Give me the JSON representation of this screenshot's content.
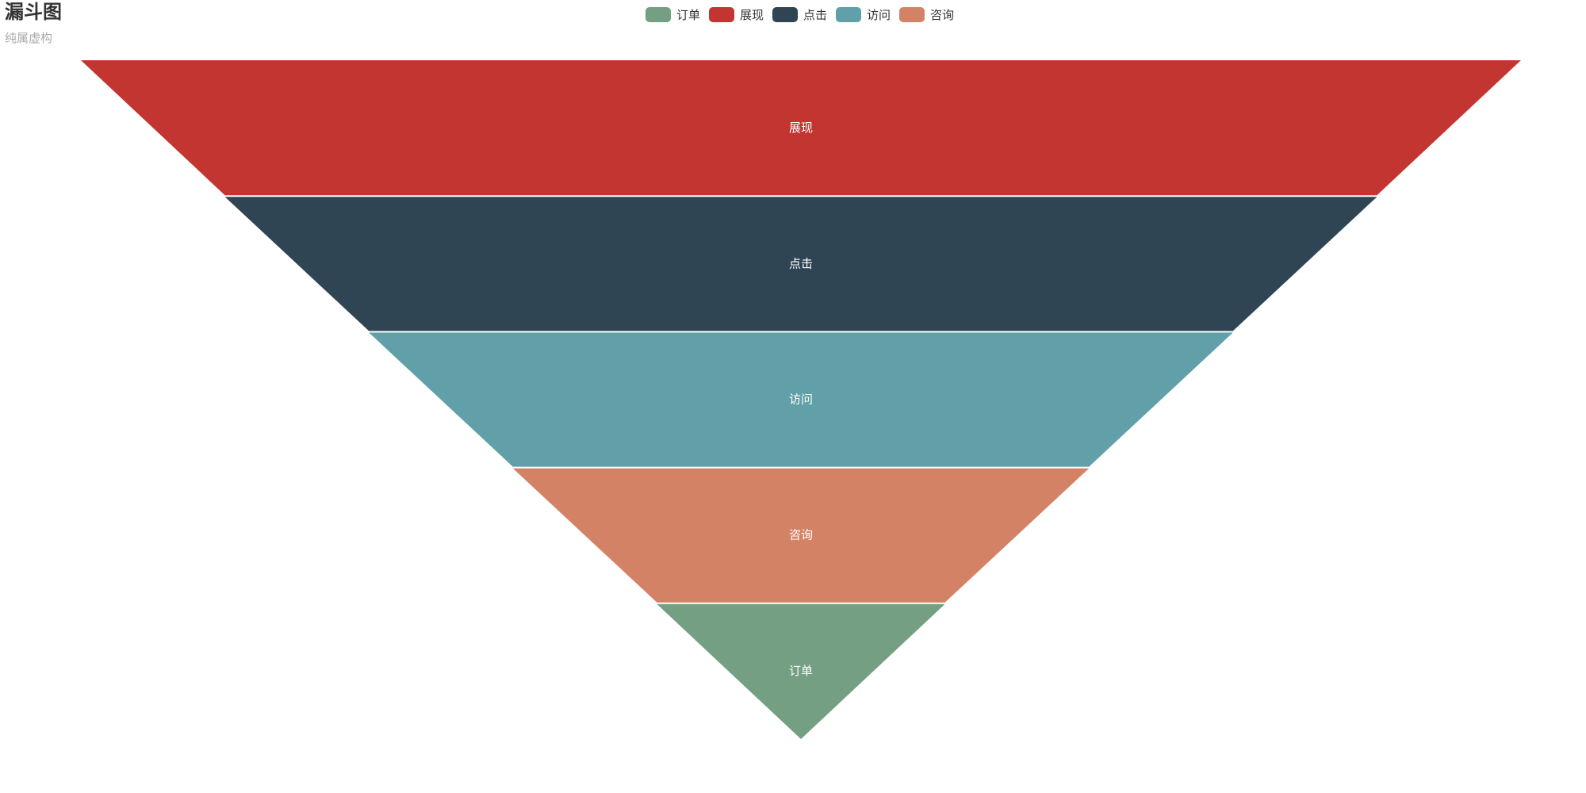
{
  "title": "漏斗图",
  "subtitle": "纯属虚构",
  "chart_data": {
    "type": "funnel",
    "title": "漏斗图",
    "subtitle": "纯属虚构",
    "sort": "descending",
    "legend": {
      "placement": "top-center",
      "items": [
        {
          "name": "订单",
          "color": "#749f83"
        },
        {
          "name": "展现",
          "color": "#c23531"
        },
        {
          "name": "点击",
          "color": "#2f4554"
        },
        {
          "name": "访问",
          "color": "#61a0a8"
        },
        {
          "name": "咨询",
          "color": "#d48265"
        }
      ]
    },
    "series": [
      {
        "name": "展现",
        "value": 100,
        "color": "#c23531"
      },
      {
        "name": "点击",
        "value": 80,
        "color": "#2f4554"
      },
      {
        "name": "访问",
        "value": 60,
        "color": "#61a0a8"
      },
      {
        "name": "咨询",
        "value": 40,
        "color": "#d48265"
      },
      {
        "name": "订单",
        "value": 20,
        "color": "#749f83"
      }
    ],
    "min": 0,
    "max": 100,
    "label_color": "#ffffff"
  }
}
